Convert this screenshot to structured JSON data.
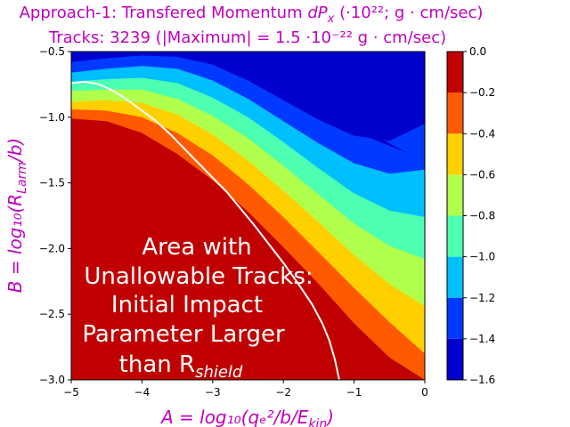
{
  "chart_data": {
    "type": "contourf",
    "title_line1": "Approach-1: Transfered Momentum ",
    "title_line1_var": "dP",
    "title_line1_sub": "x",
    "title_line1_units": " (·10²²; g · cm/sec)",
    "title_line2": "Tracks: 3239 (|Maximum| =   1.5 ·10⁻²² g · cm/sec)",
    "xlabel": "A = log₁₀(qₑ²/b/E",
    "xlabel_sub": "kin",
    "xlabel_end": ")",
    "ylabel": "B = log₁₀(R",
    "ylabel_sub": "Larm",
    "ylabel_end": "/b)",
    "xlim": [
      -5,
      0
    ],
    "ylim": [
      -3.0,
      -0.5
    ],
    "xticks": [
      "−5",
      "−4",
      "−3",
      "−2",
      "−1",
      "0"
    ],
    "xtick_values": [
      -5,
      -4,
      -3,
      -2,
      -1,
      0
    ],
    "yticks": [
      "−0.5",
      "−1.0",
      "−1.5",
      "−2.0",
      "−2.5",
      "−3.0"
    ],
    "ytick_values": [
      -0.5,
      -1.0,
      -1.5,
      -2.0,
      -2.5,
      -3.0
    ],
    "colorbar": {
      "levels": [
        -1.6,
        -1.4,
        -1.2,
        -1.0,
        -0.8,
        -0.6,
        -0.4,
        -0.2,
        0.0
      ],
      "ticks": [
        "−1.6",
        "−1.4",
        "−1.2",
        "−1.0",
        "−0.8",
        "−0.6",
        "−0.4",
        "−0.2",
        "0.0"
      ],
      "colors": [
        "#0000cd",
        "#0039ff",
        "#00bfff",
        "#4dffb0",
        "#b0ff4d",
        "#ffd000",
        "#ff5a00",
        "#c00000"
      ]
    },
    "band_boundaries": [
      {
        "level": -0.2,
        "points": [
          [
            -5,
            -1.01
          ],
          [
            -4.5,
            -1.03
          ],
          [
            -4,
            -1.12
          ],
          [
            -3.5,
            -1.28
          ],
          [
            -3,
            -1.48
          ],
          [
            -2.5,
            -1.72
          ],
          [
            -2,
            -1.99
          ],
          [
            -1.5,
            -2.27
          ],
          [
            -1,
            -2.57
          ],
          [
            -0.5,
            -2.83
          ],
          [
            0,
            -3.0
          ]
        ]
      },
      {
        "level": -0.4,
        "points": [
          [
            -5,
            -0.94
          ],
          [
            -4.5,
            -0.95
          ],
          [
            -4,
            -1.0
          ],
          [
            -3.5,
            -1.12
          ],
          [
            -3,
            -1.29
          ],
          [
            -2.5,
            -1.51
          ],
          [
            -2,
            -1.76
          ],
          [
            -1.5,
            -2.03
          ],
          [
            -1,
            -2.3
          ],
          [
            -0.5,
            -2.56
          ],
          [
            0,
            -2.8
          ]
        ]
      },
      {
        "level": -0.6,
        "points": [
          [
            -5,
            -0.88
          ],
          [
            -4.5,
            -0.87
          ],
          [
            -4,
            -0.89
          ],
          [
            -3.5,
            -0.98
          ],
          [
            -3,
            -1.13
          ],
          [
            -2.5,
            -1.33
          ],
          [
            -2,
            -1.56
          ],
          [
            -1.5,
            -1.8
          ],
          [
            -1,
            -2.05
          ],
          [
            -0.5,
            -2.27
          ],
          [
            0,
            -2.44
          ]
        ]
      },
      {
        "level": -0.8,
        "points": [
          [
            -5,
            -0.8
          ],
          [
            -4.5,
            -0.79
          ],
          [
            -4,
            -0.79
          ],
          [
            -3.5,
            -0.86
          ],
          [
            -3,
            -0.99
          ],
          [
            -2.5,
            -1.16
          ],
          [
            -2,
            -1.37
          ],
          [
            -1.5,
            -1.59
          ],
          [
            -1,
            -1.81
          ],
          [
            -0.5,
            -1.98
          ],
          [
            0,
            -2.08
          ]
        ]
      },
      {
        "level": -1.0,
        "points": [
          [
            -5,
            -0.73
          ],
          [
            -4.5,
            -0.71
          ],
          [
            -4,
            -0.7
          ],
          [
            -3.5,
            -0.74
          ],
          [
            -3,
            -0.85
          ],
          [
            -2.5,
            -1.0
          ],
          [
            -2,
            -1.19
          ],
          [
            -1.5,
            -1.39
          ],
          [
            -1,
            -1.58
          ],
          [
            -0.5,
            -1.71
          ],
          [
            0,
            -1.76
          ]
        ]
      },
      {
        "level": -1.2,
        "points": [
          [
            -5,
            -0.66
          ],
          [
            -4.5,
            -0.63
          ],
          [
            -4,
            -0.61
          ],
          [
            -3.5,
            -0.63
          ],
          [
            -3,
            -0.72
          ],
          [
            -2.5,
            -0.86
          ],
          [
            -2,
            -1.03
          ],
          [
            -1.5,
            -1.2
          ],
          [
            -1,
            -1.35
          ],
          [
            -0.5,
            -1.43
          ],
          [
            0,
            -1.4
          ]
        ]
      },
      {
        "level": -1.4,
        "points": [
          [
            -5,
            -0.58
          ],
          [
            -4.5,
            -0.55
          ],
          [
            -4,
            -0.53
          ],
          [
            -3.5,
            -0.54
          ],
          [
            -3,
            -0.6
          ],
          [
            -2.5,
            -0.72
          ],
          [
            -2,
            -0.87
          ],
          [
            -1.5,
            -1.02
          ],
          [
            -1,
            -1.14
          ],
          [
            -0.5,
            -1.18
          ],
          [
            0,
            -1.05
          ]
        ]
      }
    ],
    "inner_region": {
      "level": -1.6,
      "points": [
        [
          -3.55,
          -0.54
        ],
        [
          -3,
          -0.56
        ],
        [
          -2.5,
          -0.66
        ],
        [
          -2,
          -0.8
        ],
        [
          -1.5,
          -0.95
        ],
        [
          -1,
          -1.11
        ],
        [
          -0.25,
          -1.27
        ],
        [
          -0.5,
          -1.2
        ],
        [
          -1,
          -1.03
        ],
        [
          -1.5,
          -0.87
        ],
        [
          -2,
          -0.71
        ],
        [
          -2.5,
          -0.6
        ],
        [
          -3,
          -0.54
        ]
      ]
    },
    "boundary_line": [
      [
        -5,
        -0.74
      ],
      [
        -4.8,
        -0.73
      ],
      [
        -4.6,
        -0.75
      ],
      [
        -4.4,
        -0.8
      ],
      [
        -4.2,
        -0.87
      ],
      [
        -4,
        -0.95
      ],
      [
        -3.8,
        -1.03
      ],
      [
        -3.6,
        -1.13
      ],
      [
        -3.4,
        -1.24
      ],
      [
        -3.2,
        -1.35
      ],
      [
        -3,
        -1.46
      ],
      [
        -2.8,
        -1.57
      ],
      [
        -2.6,
        -1.7
      ],
      [
        -2.4,
        -1.83
      ],
      [
        -2.2,
        -1.97
      ],
      [
        -2,
        -2.11
      ],
      [
        -1.8,
        -2.26
      ],
      [
        -1.6,
        -2.42
      ],
      [
        -1.45,
        -2.57
      ],
      [
        -1.35,
        -2.7
      ],
      [
        -1.27,
        -2.85
      ],
      [
        -1.23,
        -2.95
      ],
      [
        -1.21,
        -3.0
      ]
    ],
    "annotation_lines": [
      "Area with",
      "Unallowable Tracks:",
      "Initial Impact",
      "Parameter Larger"
    ],
    "annotation_last": "than R",
    "annotation_last_sub": "shield"
  }
}
